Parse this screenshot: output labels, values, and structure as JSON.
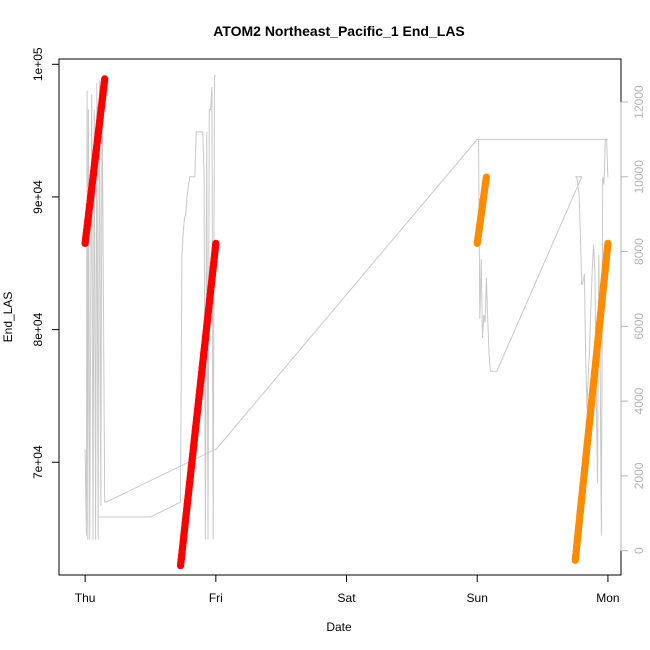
{
  "chart_data": {
    "type": "scatter",
    "title": "ATOM2 Northeast_Pacific_1 End_LAS",
    "xlabel": "Date",
    "ylabel": "End_LAS",
    "x_ticks": [
      "Thu",
      "Fri",
      "Sat",
      "Sun",
      "Mon"
    ],
    "x_range_days": [
      -0.2,
      4.1
    ],
    "y_left": {
      "range": [
        61500,
        100400
      ],
      "ticks": [
        70000,
        80000,
        90000,
        100000
      ],
      "tick_labels": [
        "7e+04",
        "8e+04",
        "9e+04",
        "1e+05"
      ]
    },
    "y_right": {
      "range": [
        -650,
        13150
      ],
      "ticks": [
        0,
        2000,
        4000,
        6000,
        8000,
        10000,
        12000
      ],
      "tick_labels": [
        "0",
        "2000",
        "4000",
        "6000",
        "8000",
        "10000",
        "12000"
      ]
    },
    "series": [
      {
        "type": "points",
        "color": "#ff0000",
        "x": [
          0.0,
          0.15
        ],
        "y": [
          86500,
          98900
        ]
      },
      {
        "type": "points",
        "color": "#ff0000",
        "x": [
          0.73,
          1.0
        ],
        "y": [
          62200,
          86500
        ]
      },
      {
        "type": "points",
        "color": "#ff8c00",
        "x": [
          3.0,
          3.07
        ],
        "y": [
          86500,
          91500
        ]
      },
      {
        "type": "points",
        "color": "#ff8c00",
        "x": [
          3.75,
          4.0
        ],
        "y": [
          62600,
          86500
        ]
      },
      {
        "type": "line",
        "color": "#c8c8c8",
        "axis": "right",
        "x": [
          0.0,
          0.01,
          0.015,
          0.02,
          0.025,
          0.035,
          0.05,
          0.06,
          0.07,
          0.08,
          0.09,
          0.1,
          0.11,
          0.12,
          0.13,
          0.15,
          0.16,
          0.99,
          1.0,
          3.0,
          3.01,
          3.02,
          3.03,
          3.04,
          3.05,
          3.06,
          3.07,
          3.08,
          3.09,
          3.1,
          3.15,
          3.8,
          3.75,
          3.76,
          3.78,
          3.8,
          3.81,
          3.82,
          3.83,
          3.84,
          3.85,
          3.86,
          3.87,
          3.88,
          3.89,
          3.9,
          3.91,
          3.92,
          3.93,
          3.94,
          3.95,
          3.96,
          3.97,
          3.98,
          3.99,
          4.0
        ],
        "y": [
          2700,
          400,
          12300,
          300,
          11800,
          300,
          12200,
          300,
          11800,
          300,
          12500,
          300,
          12600,
          1200,
          12400,
          1300,
          1300,
          2700,
          2700,
          11000,
          11000,
          6200,
          7800,
          5700,
          6300,
          6100,
          7300,
          6200,
          5300,
          4800,
          4800,
          10000,
          10000,
          10000,
          9500,
          7100,
          7200,
          7400,
          5100,
          3800,
          4700,
          5400,
          6500,
          7500,
          8200,
          7400,
          4300,
          1800,
          7900,
          5200,
          400,
          10000,
          9800,
          11000,
          11000,
          10000
        ]
      },
      {
        "type": "line",
        "color": "#c8c8c8",
        "axis": "right",
        "x": [
          0.1,
          0.5,
          0.73,
          0.74,
          0.75,
          0.76,
          0.77,
          0.78,
          0.8,
          0.82,
          0.84,
          0.85,
          0.9,
          0.91,
          0.92,
          0.93,
          0.94,
          0.95,
          0.96,
          0.97,
          0.98,
          0.99,
          1.0
        ],
        "y": [
          900,
          900,
          1300,
          7900,
          8500,
          8900,
          9000,
          9500,
          10000,
          10000,
          10000,
          11200,
          11200,
          10000,
          300,
          11200,
          300,
          11800,
          11800,
          12400,
          300,
          12700,
          12700
        ]
      },
      {
        "type": "line",
        "color": "#c8c8c8",
        "axis": "right",
        "x": [
          3.0,
          4.0
        ],
        "y": [
          11000,
          11000
        ]
      }
    ]
  }
}
